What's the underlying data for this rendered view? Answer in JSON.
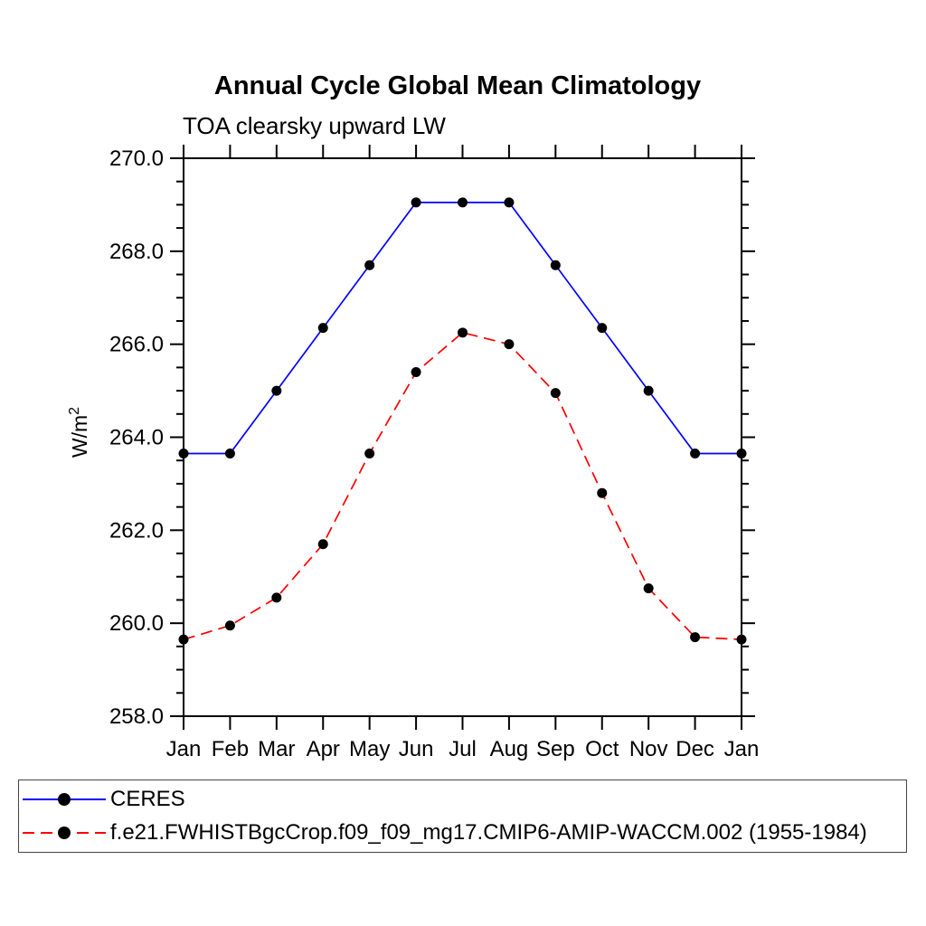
{
  "title": "Annual Cycle Global Mean Climatology",
  "subtitle": "TOA clearsky upward LW",
  "chart_data": {
    "type": "line",
    "x": [
      "Jan",
      "Feb",
      "Mar",
      "Apr",
      "May",
      "Jun",
      "Jul",
      "Aug",
      "Sep",
      "Oct",
      "Nov",
      "Dec",
      "Jan"
    ],
    "xlabel": "",
    "ylabel_base": "W/m",
    "ylabel_exponent": "2",
    "ylim": [
      258.0,
      270.0
    ],
    "ytick_major": 2.0,
    "ytick_minor": 0.5,
    "ytick_labels": [
      "258.0",
      "260.0",
      "262.0",
      "264.0",
      "266.0",
      "268.0",
      "270.0"
    ],
    "grid": false,
    "legend_position": "bottom-outside-box",
    "series": [
      {
        "name": "CERES",
        "color": "#0000ff",
        "line_style": "solid",
        "marker": "filled-circle",
        "marker_color": "#000000",
        "values": [
          263.65,
          263.65,
          265.0,
          266.35,
          267.7,
          269.05,
          269.05,
          269.05,
          267.7,
          266.35,
          265.0,
          263.65,
          263.65
        ]
      },
      {
        "name": "f.e21.FWHISTBgcCrop.f09_f09_mg17.CMIP6-AMIP-WACCM.002 (1955-1984)",
        "color": "#ff0000",
        "line_style": "dashed",
        "marker": "filled-circle",
        "marker_color": "#000000",
        "values": [
          259.65,
          259.95,
          260.55,
          261.7,
          263.65,
          265.4,
          266.25,
          266.0,
          264.95,
          262.8,
          260.75,
          259.7,
          259.65
        ]
      }
    ]
  }
}
